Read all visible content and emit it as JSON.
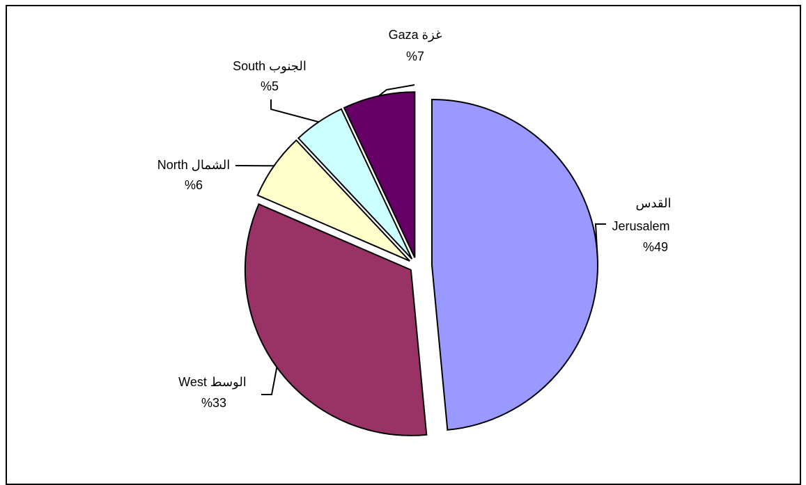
{
  "chart_data": {
    "type": "pie",
    "title": "",
    "slices": [
      {
        "name": "Jerusalem",
        "label_line1": "القدس",
        "label_line2": "Jerusalem",
        "value_text": "%49",
        "value": 48.5,
        "color": "#9999FF"
      },
      {
        "name": "West",
        "label_line1": "West الوسط",
        "value_text": "%33",
        "value": 33,
        "color": "#993366"
      },
      {
        "name": "North",
        "label_line1": "North الشمال",
        "value_text": "%6",
        "value": 6.5,
        "color": "#FFFFCC"
      },
      {
        "name": "South",
        "label_line1": "South الجنوب",
        "value_text": "%5",
        "value": 5,
        "color": "#CCFFFF"
      },
      {
        "name": "Gaza",
        "label_line1": "Gaza غزة",
        "value_text": "%7",
        "value": 7,
        "color": "#660066"
      }
    ]
  }
}
